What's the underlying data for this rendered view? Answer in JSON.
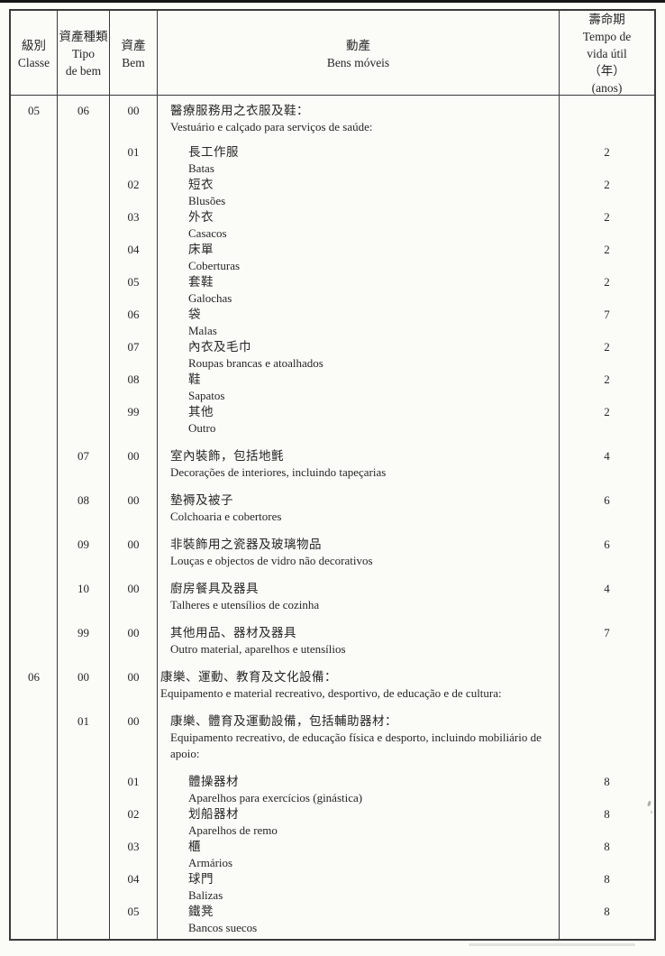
{
  "colors": {
    "ink": "#262626",
    "border": "#3a3a3a",
    "paper": "#fbfbf8"
  },
  "header": {
    "columns": [
      {
        "id": "classe",
        "lines": [
          "級別",
          "Classe"
        ]
      },
      {
        "id": "tipo-de-bem",
        "lines": [
          "資產種類",
          "Tipo",
          "de bem"
        ]
      },
      {
        "id": "bem",
        "lines": [
          "資產",
          "Bem"
        ]
      },
      {
        "id": "bens-moveis",
        "lines": [
          "動產",
          "Bens móveis"
        ]
      },
      {
        "id": "tempo-vida-util",
        "lines": [
          "壽命期",
          "Tempo de",
          "vida útil",
          "（年）",
          "(anos)"
        ]
      }
    ]
  },
  "table": {
    "rows": [
      {
        "classe": "05",
        "tipo": "06",
        "bem": "00",
        "zh": "醫療服務用之衣服及鞋：",
        "pt": "Vestuário e calçado para serviços de saúde:",
        "years": "",
        "level": "tipo",
        "gap": "xs"
      },
      {
        "classe": "",
        "tipo": "",
        "bem": "01",
        "zh": "長工作服",
        "pt": "Batas",
        "years": "2",
        "level": "item",
        "gap": "s"
      },
      {
        "classe": "",
        "tipo": "",
        "bem": "02",
        "zh": "短衣",
        "pt": "Blusões",
        "years": "2",
        "level": "item",
        "gap": ""
      },
      {
        "classe": "",
        "tipo": "",
        "bem": "03",
        "zh": "外衣",
        "pt": "Casacos",
        "years": "2",
        "level": "item",
        "gap": ""
      },
      {
        "classe": "",
        "tipo": "",
        "bem": "04",
        "zh": "床單",
        "pt": "Coberturas",
        "years": "2",
        "level": "item",
        "gap": ""
      },
      {
        "classe": "",
        "tipo": "",
        "bem": "05",
        "zh": "套鞋",
        "pt": "Galochas",
        "years": "2",
        "level": "item",
        "gap": ""
      },
      {
        "classe": "",
        "tipo": "",
        "bem": "06",
        "zh": "袋",
        "pt": "Malas",
        "years": "7",
        "level": "item",
        "gap": ""
      },
      {
        "classe": "",
        "tipo": "",
        "bem": "07",
        "zh": "內衣及毛巾",
        "pt": "Roupas brancas e atoalhados",
        "years": "2",
        "level": "item",
        "gap": ""
      },
      {
        "classe": "",
        "tipo": "",
        "bem": "08",
        "zh": "鞋",
        "pt": "Sapatos",
        "years": "2",
        "level": "item",
        "gap": ""
      },
      {
        "classe": "",
        "tipo": "",
        "bem": "99",
        "zh": "其他",
        "pt": "Outro",
        "years": "2",
        "level": "item",
        "gap": ""
      },
      {
        "classe": "",
        "tipo": "07",
        "bem": "00",
        "zh": "室內裝飾，包括地氈",
        "pt": "Decorações de interiores, incluindo tapeçarias",
        "years": "4",
        "level": "tipo",
        "gap": "m"
      },
      {
        "classe": "",
        "tipo": "08",
        "bem": "00",
        "zh": "墊褥及被子",
        "pt": "Colchoaria e cobertores",
        "years": "6",
        "level": "tipo",
        "gap": "m"
      },
      {
        "classe": "",
        "tipo": "09",
        "bem": "00",
        "zh": "非裝飾用之瓷器及玻璃物品",
        "pt": "Louças e objectos de vidro não decorativos",
        "years": "6",
        "level": "tipo",
        "gap": "m"
      },
      {
        "classe": "",
        "tipo": "10",
        "bem": "00",
        "zh": "廚房餐具及器具",
        "pt": "Talheres e utensílios de cozinha",
        "years": "4",
        "level": "tipo",
        "gap": "m"
      },
      {
        "classe": "",
        "tipo": "99",
        "bem": "00",
        "zh": "其他用品、器材及器具",
        "pt": "Outro material, aparelhos e utensílios",
        "years": "7",
        "level": "tipo",
        "gap": "m"
      },
      {
        "classe": "06",
        "tipo": "00",
        "bem": "00",
        "zh": "康樂、運動、教育及文化設備：",
        "pt": "Equipamento e material recreativo, desportivo, de educação e de cultura:",
        "years": "",
        "level": "classe",
        "gap": "m"
      },
      {
        "classe": "",
        "tipo": "01",
        "bem": "00",
        "zh": "康樂、體育及運動設備，包括輔助器材：",
        "pt": "Equipamento recreativo, de educação física e desporto, incluindo mobiliário de apoio:",
        "years": "",
        "level": "tipo",
        "gap": "m"
      },
      {
        "classe": "",
        "tipo": "",
        "bem": "01",
        "zh": "體操器材",
        "pt": "Aparelhos para exercícios (ginástica)",
        "years": "8",
        "level": "item",
        "gap": "m"
      },
      {
        "classe": "",
        "tipo": "",
        "bem": "02",
        "zh": "划船器材",
        "pt": "Aparelhos de remo",
        "years": "8",
        "level": "item",
        "gap": ""
      },
      {
        "classe": "",
        "tipo": "",
        "bem": "03",
        "zh": "櫃",
        "pt": "Armários",
        "years": "8",
        "level": "item",
        "gap": ""
      },
      {
        "classe": "",
        "tipo": "",
        "bem": "04",
        "zh": "球門",
        "pt": "Balizas",
        "years": "8",
        "level": "item",
        "gap": ""
      },
      {
        "classe": "",
        "tipo": "",
        "bem": "05",
        "zh": "鐵凳",
        "pt": "Bancos suecos",
        "years": "8",
        "level": "item",
        "gap": ""
      }
    ]
  }
}
